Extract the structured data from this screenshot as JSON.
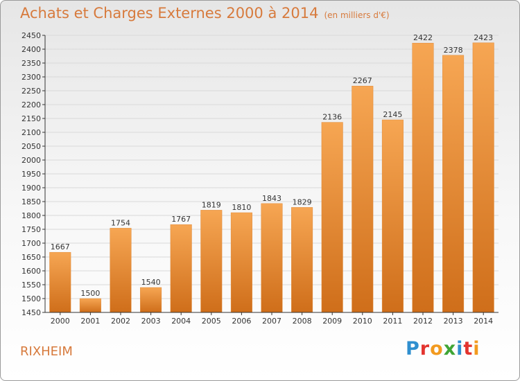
{
  "header": {
    "title": "Achats et Charges Externes 2000 à 2014",
    "subtitle": "(en milliers d'€)"
  },
  "footer": {
    "city": "RIXHEIM",
    "logo_text": "Proxiti",
    "logo_letters": [
      {
        "ch": "P",
        "color": "#2f8fcf"
      },
      {
        "ch": "r",
        "color": "#e3342f"
      },
      {
        "ch": "o",
        "color": "#f29a1f"
      },
      {
        "ch": "x",
        "color": "#3fa535"
      },
      {
        "ch": "i",
        "color": "#2f8fcf"
      },
      {
        "ch": "t",
        "color": "#e3342f"
      },
      {
        "ch": "i",
        "color": "#f29a1f"
      }
    ]
  },
  "colors": {
    "bar_light": "#f6a653",
    "bar_dark": "#cf6e1a",
    "accent": "#d77a3c",
    "grid": "#d9d9d9",
    "axis": "#333333"
  },
  "chart_data": {
    "type": "bar",
    "categories": [
      "2000",
      "2001",
      "2002",
      "2003",
      "2004",
      "2005",
      "2006",
      "2007",
      "2008",
      "2009",
      "2010",
      "2011",
      "2012",
      "2013",
      "2014"
    ],
    "values": [
      1667,
      1500,
      1754,
      1540,
      1767,
      1819,
      1810,
      1843,
      1829,
      2136,
      2267,
      2145,
      2422,
      2378,
      2423
    ],
    "ylim": [
      1450,
      2450
    ],
    "ytick_step": 50,
    "grid": true,
    "data_labels": true
  }
}
